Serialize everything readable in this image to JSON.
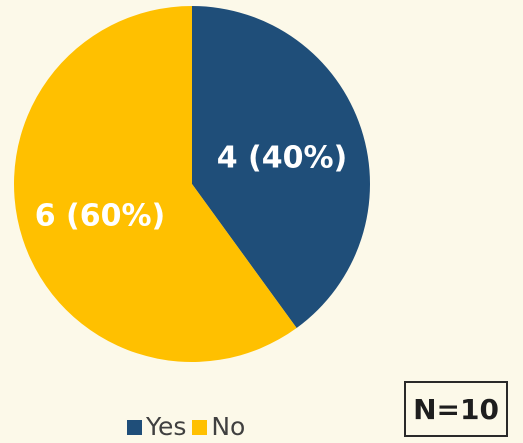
{
  "chart_data": {
    "type": "pie",
    "slices": [
      {
        "name": "Yes",
        "value": 4,
        "label": "4 (40%)",
        "color": "#1F4E79"
      },
      {
        "name": "No",
        "value": 6,
        "label": "6 (60%)",
        "color": "#FFC000"
      }
    ],
    "legend": [
      "Yes",
      "No"
    ],
    "legend_position": "bottom",
    "annotation": "N=10"
  },
  "colors": {
    "background": "#FCF9E9",
    "yes": "#1F4E79",
    "no": "#FFC000"
  }
}
